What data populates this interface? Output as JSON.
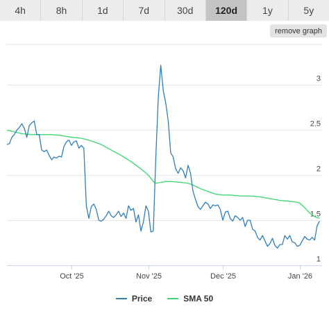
{
  "tabs": [
    {
      "label": "4h",
      "active": false
    },
    {
      "label": "8h",
      "active": false
    },
    {
      "label": "1d",
      "active": false
    },
    {
      "label": "7d",
      "active": false
    },
    {
      "label": "30d",
      "active": false
    },
    {
      "label": "120d",
      "active": true
    },
    {
      "label": "1y",
      "active": false
    },
    {
      "label": "5y",
      "active": false
    }
  ],
  "remove_graph_label": "remove graph",
  "colors": {
    "price": "#2f7ebc",
    "sma": "#3ad66f",
    "grid": "#e6e6e6"
  },
  "chart_data": {
    "type": "line",
    "ylim": [
      1,
      3.45
    ],
    "yticks": [
      1,
      1.5,
      2,
      2.5,
      3
    ],
    "ytick_labels": [
      "1",
      "1.5",
      "2",
      "2.5",
      "3"
    ],
    "x_unit": "days since Sep 5 2025",
    "xticks": [
      {
        "x": 26,
        "label": "Oct '25"
      },
      {
        "x": 57,
        "label": "Nov '25"
      },
      {
        "x": 87,
        "label": "Dec '25"
      },
      {
        "x": 118,
        "label": "Jan '26"
      }
    ],
    "series": [
      {
        "name": "Price",
        "color": "#2f7ebc",
        "points": [
          [
            0,
            2.34
          ],
          [
            1,
            2.35
          ],
          [
            2,
            2.42
          ],
          [
            3,
            2.45
          ],
          [
            4,
            2.5
          ],
          [
            5,
            2.53
          ],
          [
            6,
            2.57
          ],
          [
            7,
            2.52
          ],
          [
            8,
            2.42
          ],
          [
            9,
            2.55
          ],
          [
            10,
            2.58
          ],
          [
            11,
            2.6
          ],
          [
            12,
            2.45
          ],
          [
            13,
            2.45
          ],
          [
            14,
            2.28
          ],
          [
            15,
            2.26
          ],
          [
            16,
            2.28
          ],
          [
            17,
            2.22
          ],
          [
            18,
            2.17
          ],
          [
            19,
            2.2
          ],
          [
            20,
            2.19
          ],
          [
            21,
            2.21
          ],
          [
            22,
            2.2
          ],
          [
            23,
            2.32
          ],
          [
            24,
            2.37
          ],
          [
            25,
            2.39
          ],
          [
            26,
            2.33
          ],
          [
            27,
            2.37
          ],
          [
            28,
            2.38
          ],
          [
            29,
            2.3
          ],
          [
            30,
            2.33
          ],
          [
            31,
            2.3
          ],
          [
            32,
            1.66
          ],
          [
            33,
            1.52
          ],
          [
            34,
            1.65
          ],
          [
            35,
            1.68
          ],
          [
            36,
            1.62
          ],
          [
            37,
            1.5
          ],
          [
            38,
            1.49
          ],
          [
            39,
            1.51
          ],
          [
            40,
            1.55
          ],
          [
            41,
            1.6
          ],
          [
            42,
            1.55
          ],
          [
            43,
            1.53
          ],
          [
            44,
            1.56
          ],
          [
            45,
            1.6
          ],
          [
            46,
            1.54
          ],
          [
            47,
            1.58
          ],
          [
            48,
            1.52
          ],
          [
            49,
            1.66
          ],
          [
            50,
            1.61
          ],
          [
            51,
            1.63
          ],
          [
            52,
            1.48
          ],
          [
            53,
            1.56
          ],
          [
            54,
            1.38
          ],
          [
            55,
            1.48
          ],
          [
            56,
            1.66
          ],
          [
            57,
            1.6
          ],
          [
            58,
            1.37
          ],
          [
            59,
            1.38
          ],
          [
            60,
            2.2
          ],
          [
            61,
            2.87
          ],
          [
            62,
            3.22
          ],
          [
            63,
            2.94
          ],
          [
            64,
            2.8
          ],
          [
            65,
            2.6
          ],
          [
            66,
            2.25
          ],
          [
            67,
            2.2
          ],
          [
            68,
            2.07
          ],
          [
            69,
            2.02
          ],
          [
            70,
            2.08
          ],
          [
            71,
            2.05
          ],
          [
            72,
            1.97
          ],
          [
            73,
            2.11
          ],
          [
            74,
            2.02
          ],
          [
            75,
            1.82
          ],
          [
            76,
            1.73
          ],
          [
            77,
            1.65
          ],
          [
            78,
            1.62
          ],
          [
            79,
            1.66
          ],
          [
            80,
            1.7
          ],
          [
            81,
            1.68
          ],
          [
            82,
            1.63
          ],
          [
            83,
            1.67
          ],
          [
            84,
            1.66
          ],
          [
            85,
            1.67
          ],
          [
            86,
            1.62
          ],
          [
            87,
            1.5
          ],
          [
            88,
            1.59
          ],
          [
            89,
            1.6
          ],
          [
            90,
            1.52
          ],
          [
            91,
            1.49
          ],
          [
            92,
            1.55
          ],
          [
            93,
            1.53
          ],
          [
            94,
            1.5
          ],
          [
            95,
            1.53
          ],
          [
            96,
            1.43
          ],
          [
            97,
            1.5
          ],
          [
            98,
            1.5
          ],
          [
            99,
            1.4
          ],
          [
            100,
            1.38
          ],
          [
            101,
            1.31
          ],
          [
            102,
            1.28
          ],
          [
            103,
            1.33
          ],
          [
            104,
            1.27
          ],
          [
            105,
            1.21
          ],
          [
            106,
            1.24
          ],
          [
            107,
            1.3
          ],
          [
            108,
            1.22
          ],
          [
            109,
            1.19
          ],
          [
            110,
            1.23
          ],
          [
            111,
            1.23
          ],
          [
            112,
            1.33
          ],
          [
            113,
            1.29
          ],
          [
            114,
            1.33
          ],
          [
            115,
            1.26
          ],
          [
            116,
            1.25
          ],
          [
            117,
            1.21
          ],
          [
            118,
            1.22
          ],
          [
            119,
            1.27
          ],
          [
            120,
            1.32
          ],
          [
            121,
            1.29
          ],
          [
            122,
            1.28
          ],
          [
            123,
            1.31
          ],
          [
            124,
            1.28
          ],
          [
            125,
            1.44
          ],
          [
            126,
            1.49
          ]
        ]
      },
      {
        "name": "SMA 50",
        "color": "#3ad66f",
        "points": [
          [
            0,
            2.5
          ],
          [
            3,
            2.48
          ],
          [
            6,
            2.46
          ],
          [
            10,
            2.45
          ],
          [
            14,
            2.45
          ],
          [
            18,
            2.45
          ],
          [
            22,
            2.44
          ],
          [
            26,
            2.42
          ],
          [
            30,
            2.41
          ],
          [
            34,
            2.38
          ],
          [
            38,
            2.34
          ],
          [
            42,
            2.28
          ],
          [
            46,
            2.22
          ],
          [
            50,
            2.15
          ],
          [
            54,
            2.07
          ],
          [
            57,
            2.0
          ],
          [
            59,
            1.93
          ],
          [
            60,
            1.91
          ],
          [
            62,
            1.92
          ],
          [
            64,
            1.93
          ],
          [
            66,
            1.93
          ],
          [
            70,
            1.92
          ],
          [
            73,
            1.91
          ],
          [
            75,
            1.89
          ],
          [
            78,
            1.85
          ],
          [
            81,
            1.82
          ],
          [
            84,
            1.79
          ],
          [
            87,
            1.78
          ],
          [
            90,
            1.78
          ],
          [
            94,
            1.77
          ],
          [
            98,
            1.77
          ],
          [
            102,
            1.76
          ],
          [
            106,
            1.74
          ],
          [
            110,
            1.72
          ],
          [
            114,
            1.71
          ],
          [
            117,
            1.7
          ],
          [
            118,
            1.69
          ],
          [
            120,
            1.64
          ],
          [
            122,
            1.58
          ],
          [
            124,
            1.54
          ],
          [
            126,
            1.52
          ]
        ]
      }
    ]
  }
}
